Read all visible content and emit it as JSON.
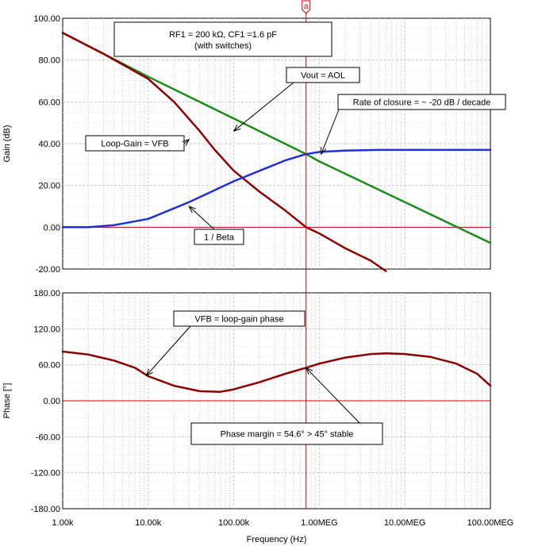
{
  "colors": {
    "aol": "#1a8c1a",
    "vfb": "#8b0000",
    "beta": "#1f2fd6",
    "cursor": "#d40000",
    "grid": "#c8c8c8",
    "marker_border": "#d40000"
  },
  "cursor": {
    "label": "a",
    "frequency_hz": 700000
  },
  "chart_data": [
    {
      "type": "line",
      "id": "gain",
      "ylabel": "Gain (dB)",
      "xscale": "log",
      "xlim": [
        1000,
        100000000
      ],
      "ylim": [
        -20,
        100
      ],
      "grid": true,
      "ytick_values": [
        100,
        80,
        60,
        40,
        20,
        0,
        -20
      ],
      "ytick_labels": [
        "100.00",
        "80.00",
        "60.00",
        "40.00",
        "20.00",
        "0.00",
        "-20.00"
      ],
      "series": [
        {
          "name": "Vout = AOL",
          "color_key": "aol",
          "x": [
            1000,
            10000,
            100000,
            700000,
            1000000,
            10000000,
            100000000
          ],
          "y": [
            93,
            72,
            52,
            35,
            31.5,
            12,
            -7.5
          ]
        },
        {
          "name": "Loop-Gain = VFB",
          "color_key": "vfb",
          "x": [
            1000,
            3000,
            10000,
            20000,
            40000,
            60000,
            100000,
            200000,
            400000,
            700000,
            1000000,
            2000000,
            4000000,
            6000000
          ],
          "y": [
            93,
            83,
            71,
            60,
            46,
            37,
            27,
            17,
            8,
            0,
            -3,
            -10,
            -16,
            -21
          ]
        },
        {
          "name": "1 / Beta",
          "color_key": "beta",
          "x": [
            1000,
            2000,
            4000,
            10000,
            30000,
            100000,
            200000,
            400000,
            700000,
            1000000,
            2000000,
            5000000,
            10000000,
            100000000
          ],
          "y": [
            0,
            0,
            1,
            4,
            12,
            22,
            27,
            32,
            35,
            36,
            36.7,
            37,
            37,
            37
          ]
        }
      ],
      "annotations": [
        {
          "key": "title_box",
          "lines": [
            "RF1 = 200 kΩ, CF1 =1.6 pF",
            "(with switches)"
          ]
        },
        {
          "key": "aol",
          "text": "Vout = AOL",
          "x": 100000,
          "y": 46
        },
        {
          "key": "closure",
          "text": "Rate of closure = ~ -20 dB / decade",
          "x": 1050000,
          "y": 35
        },
        {
          "key": "vfb",
          "text": "Loop-Gain = VFB",
          "x": 30000,
          "y": 42
        },
        {
          "key": "beta",
          "text": "1 / Beta",
          "x": 30000,
          "y": 10
        }
      ]
    },
    {
      "type": "line",
      "id": "phase",
      "ylabel": "Phase [°]",
      "xlabel": "Frequency (Hz)",
      "xscale": "log",
      "xlim": [
        1000,
        100000000
      ],
      "ylim": [
        -180,
        180
      ],
      "grid": true,
      "ytick_values": [
        180,
        120,
        60,
        0,
        -60,
        -120,
        -180
      ],
      "ytick_labels": [
        "180.00",
        "120.00",
        "60.00",
        "0.00",
        "-60.00",
        "-120.00",
        "-180.00"
      ],
      "xtick_values": [
        1000,
        10000,
        100000,
        1000000,
        10000000,
        100000000
      ],
      "xtick_labels": [
        "1.00k",
        "10.00k",
        "100.00k",
        "1.00MEG",
        "10.00MEG",
        "100.00MEG"
      ],
      "series": [
        {
          "name": "VFB = loop-gain phase",
          "color_key": "vfb",
          "x": [
            1000,
            2000,
            4000,
            7000,
            10000,
            20000,
            40000,
            70000,
            100000,
            200000,
            400000,
            700000,
            1000000,
            2000000,
            4000000,
            6000000,
            10000000,
            20000000,
            40000000,
            70000000,
            100000000
          ],
          "y": [
            82,
            77,
            67,
            55,
            41,
            25,
            16,
            15,
            19,
            31,
            45,
            55,
            62,
            72,
            78,
            79,
            78,
            73,
            62,
            45,
            25
          ]
        }
      ],
      "annotations": [
        {
          "key": "vfb_phase",
          "text": "VFB = loop-gain phase",
          "x": 9500,
          "y": 42
        },
        {
          "key": "pm",
          "text": "Phase margin = 54.6° > 45° stable",
          "x": 700000,
          "y": 55
        }
      ]
    }
  ]
}
